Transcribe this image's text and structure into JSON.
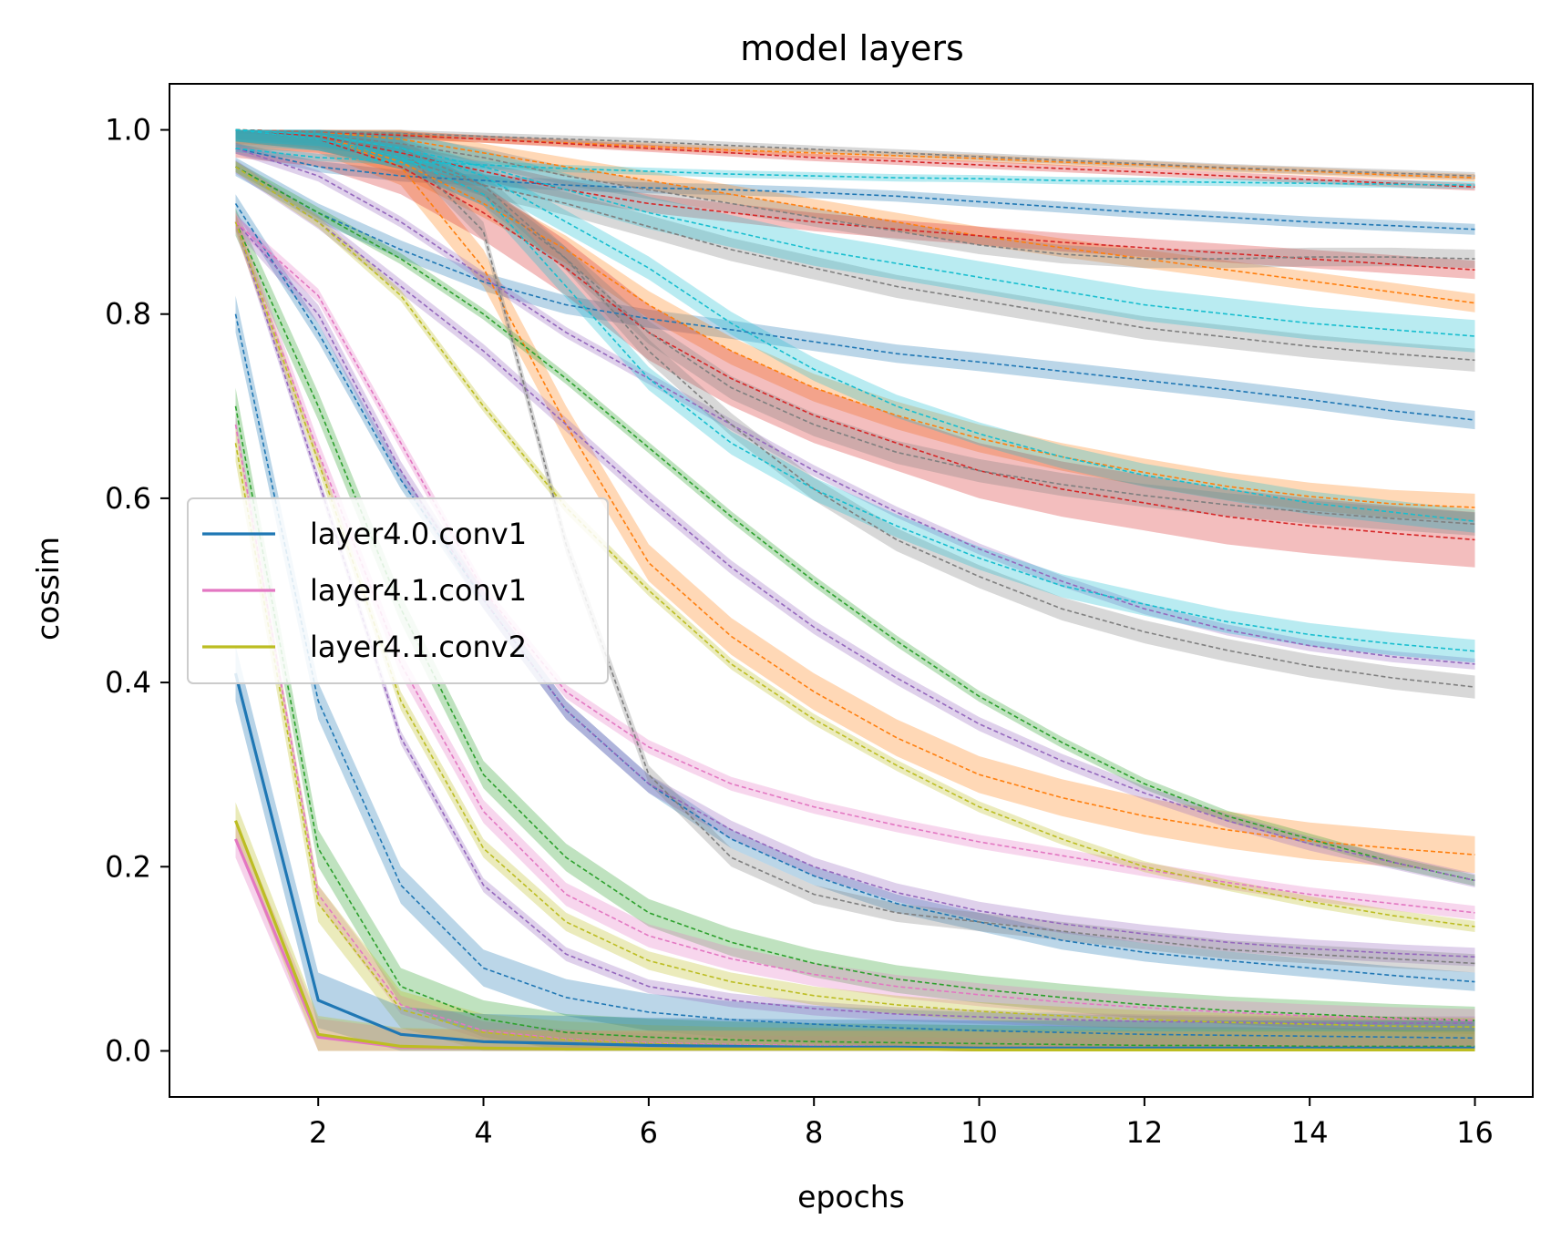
{
  "chart_data": {
    "type": "line",
    "title": "model layers",
    "xlabel": "epochs",
    "ylabel": "cossim",
    "xlim": [
      0.2,
      16.7
    ],
    "ylim": [
      -0.05,
      1.05
    ],
    "x_ticks": [
      2,
      4,
      6,
      8,
      10,
      12,
      14,
      16
    ],
    "y_ticks": [
      0.0,
      0.2,
      0.4,
      0.6,
      0.8,
      1.0
    ],
    "grid": false,
    "legend_position": "center-left",
    "x": [
      1,
      2,
      3,
      4,
      5,
      6,
      7,
      8,
      9,
      10,
      11,
      12,
      13,
      14,
      15,
      16
    ],
    "series": [
      {
        "name": "layer4.0.conv1",
        "color": "#1f77b4",
        "dashed": false,
        "band": 0.06,
        "values": [
          0.41,
          0.055,
          0.018,
          0.01,
          0.008,
          0.006,
          0.005,
          0.004,
          0.004,
          0.003,
          0.003,
          0.003,
          0.003,
          0.003,
          0.003,
          0.003
        ]
      },
      {
        "name": "layer4.1.conv1",
        "color": "#e377c2",
        "dashed": false,
        "band": 0.04,
        "values": [
          0.23,
          0.015,
          0.004,
          0.003,
          0.002,
          0.002,
          0.002,
          0.002,
          0.002,
          0.001,
          0.001,
          0.001,
          0.001,
          0.001,
          0.001,
          0.001
        ]
      },
      {
        "name": "layer4.1.conv2",
        "color": "#bcbd22",
        "dashed": false,
        "band": 0.04,
        "values": [
          0.25,
          0.018,
          0.005,
          0.003,
          0.002,
          0.002,
          0.002,
          0.002,
          0.002,
          0.001,
          0.001,
          0.001,
          0.001,
          0.001,
          0.001,
          0.001
        ]
      },
      {
        "color": "#1f77b4",
        "dashed": true,
        "band": 0.012,
        "values": [
          0.98,
          0.96,
          0.95,
          0.945,
          0.94,
          0.937,
          0.935,
          0.932,
          0.928,
          0.922,
          0.916,
          0.91,
          0.905,
          0.9,
          0.896,
          0.892
        ]
      },
      {
        "color": "#1f77b4",
        "dashed": true,
        "band": 0.02,
        "values": [
          0.96,
          0.91,
          0.87,
          0.835,
          0.81,
          0.795,
          0.783,
          0.77,
          0.757,
          0.748,
          0.738,
          0.728,
          0.718,
          0.707,
          0.695,
          0.685
        ]
      },
      {
        "color": "#1f77b4",
        "dashed": true,
        "band": 0.02,
        "values": [
          0.92,
          0.78,
          0.62,
          0.49,
          0.37,
          0.29,
          0.23,
          0.19,
          0.16,
          0.14,
          0.12,
          0.107,
          0.098,
          0.09,
          0.082,
          0.075
        ]
      },
      {
        "color": "#1f77b4",
        "dashed": true,
        "band": 0.04,
        "values": [
          0.8,
          0.38,
          0.18,
          0.09,
          0.058,
          0.042,
          0.034,
          0.029,
          0.025,
          0.022,
          0.02,
          0.018,
          0.017,
          0.016,
          0.015,
          0.014
        ]
      },
      {
        "color": "#ff7f0e",
        "dashed": true,
        "band": 0.008,
        "values": [
          1.0,
          0.998,
          0.995,
          0.99,
          0.986,
          0.982,
          0.978,
          0.975,
          0.972,
          0.969,
          0.965,
          0.962,
          0.958,
          0.955,
          0.951,
          0.948
        ]
      },
      {
        "color": "#ff7f0e",
        "dashed": true,
        "band": 0.02,
        "values": [
          1.0,
          0.998,
          0.99,
          0.975,
          0.96,
          0.945,
          0.93,
          0.915,
          0.9,
          0.885,
          0.872,
          0.86,
          0.848,
          0.836,
          0.824,
          0.812
        ]
      },
      {
        "color": "#ff7f0e",
        "dashed": true,
        "band": 0.03,
        "values": [
          1.0,
          0.995,
          0.965,
          0.92,
          0.87,
          0.81,
          0.76,
          0.72,
          0.69,
          0.665,
          0.645,
          0.628,
          0.613,
          0.602,
          0.594,
          0.59
        ]
      },
      {
        "color": "#ff7f0e",
        "dashed": true,
        "band": 0.04,
        "values": [
          1.0,
          0.995,
          0.96,
          0.85,
          0.68,
          0.53,
          0.45,
          0.39,
          0.34,
          0.3,
          0.275,
          0.255,
          0.24,
          0.228,
          0.22,
          0.213
        ]
      },
      {
        "color": "#2ca02c",
        "dashed": true,
        "band": 0.012,
        "values": [
          0.96,
          0.91,
          0.86,
          0.8,
          0.73,
          0.655,
          0.58,
          0.51,
          0.445,
          0.385,
          0.335,
          0.29,
          0.255,
          0.23,
          0.205,
          0.185
        ]
      },
      {
        "color": "#2ca02c",
        "dashed": true,
        "band": 0.03,
        "values": [
          0.9,
          0.7,
          0.48,
          0.3,
          0.21,
          0.15,
          0.118,
          0.095,
          0.078,
          0.067,
          0.058,
          0.05,
          0.044,
          0.04,
          0.036,
          0.033
        ]
      },
      {
        "color": "#2ca02c",
        "dashed": true,
        "band": 0.04,
        "values": [
          0.7,
          0.22,
          0.07,
          0.035,
          0.02,
          0.015,
          0.012,
          0.01,
          0.009,
          0.008,
          0.007,
          0.006,
          0.006,
          0.005,
          0.005,
          0.005
        ]
      },
      {
        "color": "#d62728",
        "dashed": true,
        "band": 0.008,
        "values": [
          1.0,
          0.998,
          0.994,
          0.99,
          0.985,
          0.98,
          0.975,
          0.97,
          0.966,
          0.962,
          0.958,
          0.954,
          0.95,
          0.946,
          0.942,
          0.938
        ]
      },
      {
        "color": "#d62728",
        "dashed": true,
        "band": 0.02,
        "values": [
          1.0,
          0.993,
          0.975,
          0.955,
          0.935,
          0.92,
          0.91,
          0.9,
          0.892,
          0.885,
          0.878,
          0.872,
          0.866,
          0.86,
          0.854,
          0.848
        ]
      },
      {
        "color": "#d62728",
        "dashed": true,
        "band": 0.06,
        "values": [
          1.0,
          0.99,
          0.96,
          0.91,
          0.85,
          0.78,
          0.73,
          0.69,
          0.66,
          0.63,
          0.61,
          0.595,
          0.58,
          0.57,
          0.562,
          0.555
        ]
      },
      {
        "color": "#9467bd",
        "dashed": true,
        "band": 0.012,
        "values": [
          0.98,
          0.95,
          0.9,
          0.84,
          0.78,
          0.73,
          0.68,
          0.63,
          0.585,
          0.545,
          0.51,
          0.48,
          0.457,
          0.44,
          0.428,
          0.42
        ]
      },
      {
        "color": "#9467bd",
        "dashed": true,
        "band": 0.015,
        "values": [
          0.96,
          0.9,
          0.83,
          0.76,
          0.68,
          0.6,
          0.525,
          0.46,
          0.405,
          0.355,
          0.315,
          0.28,
          0.25,
          0.225,
          0.205,
          0.185
        ]
      },
      {
        "color": "#9467bd",
        "dashed": true,
        "band": 0.02,
        "values": [
          0.9,
          0.8,
          0.63,
          0.49,
          0.37,
          0.29,
          0.24,
          0.2,
          0.172,
          0.152,
          0.138,
          0.127,
          0.118,
          0.111,
          0.106,
          0.102
        ]
      },
      {
        "color": "#9467bd",
        "dashed": true,
        "band": 0.015,
        "values": [
          0.9,
          0.62,
          0.34,
          0.18,
          0.105,
          0.07,
          0.055,
          0.046,
          0.04,
          0.037,
          0.034,
          0.032,
          0.031,
          0.03,
          0.03,
          0.03
        ]
      },
      {
        "color": "#7f7f7f",
        "dashed": true,
        "band": 0.008,
        "values": [
          1.0,
          0.998,
          0.996,
          0.993,
          0.99,
          0.987,
          0.983,
          0.979,
          0.975,
          0.971,
          0.967,
          0.963,
          0.959,
          0.956,
          0.953,
          0.95
        ]
      },
      {
        "color": "#7f7f7f",
        "dashed": true,
        "band": 0.02,
        "values": [
          1.0,
          0.995,
          0.985,
          0.97,
          0.95,
          0.935,
          0.92,
          0.905,
          0.89,
          0.875,
          0.865,
          0.86,
          0.86,
          0.862,
          0.862,
          0.86
        ]
      },
      {
        "color": "#7f7f7f",
        "dashed": true,
        "band": 0.025,
        "values": [
          1.0,
          0.99,
          0.97,
          0.94,
          0.92,
          0.895,
          0.87,
          0.85,
          0.83,
          0.815,
          0.8,
          0.785,
          0.775,
          0.765,
          0.757,
          0.75
        ]
      },
      {
        "color": "#7f7f7f",
        "dashed": true,
        "band": 0.025,
        "values": [
          1.0,
          0.99,
          0.97,
          0.93,
          0.86,
          0.76,
          0.68,
          0.61,
          0.555,
          0.515,
          0.48,
          0.455,
          0.435,
          0.418,
          0.405,
          0.395
        ]
      },
      {
        "color": "#7f7f7f",
        "dashed": true,
        "band": 0.02,
        "values": [
          1.0,
          0.99,
          0.98,
          0.89,
          0.55,
          0.3,
          0.21,
          0.17,
          0.15,
          0.14,
          0.13,
          0.12,
          0.11,
          0.105,
          0.1,
          0.095
        ]
      },
      {
        "color": "#7f7f7f",
        "dashed": true,
        "band": 0.025,
        "values": [
          1.0,
          0.995,
          0.98,
          0.94,
          0.86,
          0.78,
          0.72,
          0.68,
          0.65,
          0.63,
          0.615,
          0.603,
          0.593,
          0.585,
          0.578,
          0.572
        ]
      },
      {
        "color": "#e377c2",
        "dashed": true,
        "band": 0.015,
        "values": [
          0.9,
          0.82,
          0.66,
          0.5,
          0.39,
          0.33,
          0.29,
          0.265,
          0.245,
          0.227,
          0.212,
          0.197,
          0.183,
          0.17,
          0.16,
          0.15
        ]
      },
      {
        "color": "#e377c2",
        "dashed": true,
        "band": 0.025,
        "values": [
          0.9,
          0.65,
          0.42,
          0.26,
          0.17,
          0.125,
          0.1,
          0.083,
          0.07,
          0.061,
          0.053,
          0.047,
          0.042,
          0.038,
          0.035,
          0.033
        ]
      },
      {
        "color": "#e377c2",
        "dashed": true,
        "band": 0.02,
        "values": [
          0.68,
          0.17,
          0.05,
          0.022,
          0.013,
          0.009,
          0.007,
          0.006,
          0.005,
          0.004,
          0.004,
          0.003,
          0.003,
          0.003,
          0.003,
          0.003
        ]
      },
      {
        "color": "#bcbd22",
        "dashed": true,
        "band": 0.012,
        "values": [
          0.96,
          0.9,
          0.82,
          0.7,
          0.59,
          0.5,
          0.42,
          0.36,
          0.31,
          0.265,
          0.23,
          0.2,
          0.18,
          0.162,
          0.147,
          0.135
        ]
      },
      {
        "color": "#bcbd22",
        "dashed": true,
        "band": 0.02,
        "values": [
          0.9,
          0.64,
          0.38,
          0.22,
          0.14,
          0.098,
          0.075,
          0.06,
          0.05,
          0.043,
          0.038,
          0.034,
          0.031,
          0.029,
          0.027,
          0.026
        ]
      },
      {
        "color": "#bcbd22",
        "dashed": true,
        "band": 0.04,
        "values": [
          0.66,
          0.16,
          0.045,
          0.02,
          0.012,
          0.008,
          0.006,
          0.005,
          0.004,
          0.004,
          0.003,
          0.003,
          0.003,
          0.003,
          0.003,
          0.003
        ]
      },
      {
        "color": "#17becf",
        "dashed": true,
        "band": 0.008,
        "values": [
          0.98,
          0.97,
          0.966,
          0.962,
          0.958,
          0.955,
          0.952,
          0.95,
          0.948,
          0.947,
          0.945,
          0.944,
          0.943,
          0.942,
          0.941,
          0.94
        ]
      },
      {
        "color": "#17becf",
        "dashed": true,
        "band": 0.035,
        "values": [
          1.0,
          0.995,
          0.98,
          0.96,
          0.935,
          0.91,
          0.89,
          0.87,
          0.855,
          0.84,
          0.825,
          0.81,
          0.8,
          0.79,
          0.783,
          0.776
        ]
      },
      {
        "color": "#17becf",
        "dashed": true,
        "band": 0.025,
        "values": [
          1.0,
          0.995,
          0.98,
          0.95,
          0.9,
          0.85,
          0.79,
          0.74,
          0.7,
          0.67,
          0.645,
          0.625,
          0.61,
          0.595,
          0.585,
          0.575
        ]
      },
      {
        "color": "#17becf",
        "dashed": true,
        "band": 0.025,
        "values": [
          1.0,
          0.99,
          0.97,
          0.93,
          0.83,
          0.73,
          0.66,
          0.61,
          0.57,
          0.535,
          0.505,
          0.485,
          0.466,
          0.452,
          0.442,
          0.434
        ]
      }
    ]
  }
}
